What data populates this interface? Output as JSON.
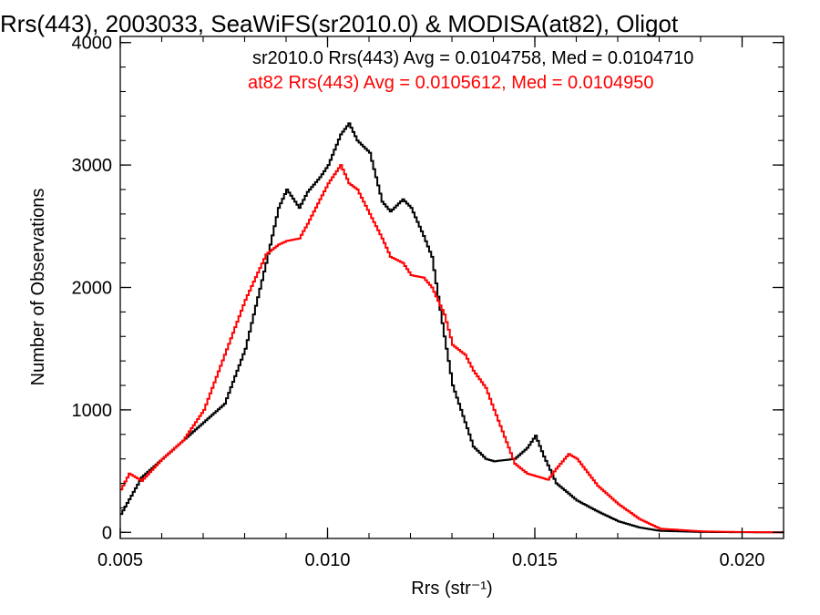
{
  "chart_data": {
    "type": "line",
    "style": "step-histogram",
    "title": "Rrs(443), 2003033, SeaWiFS(sr2010.0) & MODISA(at82), Oligot",
    "xlabel": "Rrs (str⁻¹)",
    "ylabel": "Number of Observations",
    "xlim": [
      0.005,
      0.021
    ],
    "ylim": [
      -50,
      4050
    ],
    "grid": false,
    "x_ticks": [
      0.005,
      0.01,
      0.015,
      0.02
    ],
    "x_tick_labels": [
      "0.005",
      "0.010",
      "0.015",
      "0.020"
    ],
    "y_ticks": [
      0,
      1000,
      2000,
      3000,
      4000
    ],
    "y_tick_labels": [
      "0",
      "1000",
      "2000",
      "3000",
      "4000"
    ],
    "annotations": [
      {
        "text": "sr2010.0 Rrs(443) Avg = 0.0104758, Med = 0.0104710",
        "color": "#000000"
      },
      {
        "text": "at82 Rrs(443) Avg = 0.0105612, Med = 0.0104950",
        "color": "#ff0000"
      }
    ],
    "series": [
      {
        "color": "#000000",
        "x": [
          0.005,
          0.0055,
          0.006,
          0.0065,
          0.007,
          0.0075,
          0.008,
          0.0085,
          0.0088,
          0.009,
          0.0093,
          0.0095,
          0.0098,
          0.01,
          0.0103,
          0.0105,
          0.0107,
          0.011,
          0.0113,
          0.0115,
          0.0118,
          0.012,
          0.0123,
          0.0125,
          0.0128,
          0.013,
          0.0133,
          0.0135,
          0.0138,
          0.014,
          0.0145,
          0.0148,
          0.015,
          0.0152,
          0.0155,
          0.016,
          0.0165,
          0.017,
          0.0175,
          0.018,
          0.019,
          0.02,
          0.021
        ],
        "y": [
          150,
          450,
          600,
          750,
          900,
          1050,
          1500,
          2200,
          2650,
          2800,
          2650,
          2780,
          2900,
          3000,
          3250,
          3340,
          3200,
          3100,
          2700,
          2620,
          2720,
          2650,
          2420,
          2250,
          1600,
          1200,
          900,
          700,
          600,
          580,
          600,
          690,
          790,
          620,
          400,
          260,
          170,
          90,
          40,
          12,
          3,
          1,
          0
        ]
      },
      {
        "color": "#ff0000",
        "x": [
          0.005,
          0.0052,
          0.0055,
          0.006,
          0.0065,
          0.007,
          0.0075,
          0.008,
          0.0085,
          0.0088,
          0.009,
          0.0093,
          0.0095,
          0.0098,
          0.01,
          0.0103,
          0.0105,
          0.0107,
          0.011,
          0.0113,
          0.0115,
          0.0118,
          0.012,
          0.0123,
          0.0125,
          0.0128,
          0.013,
          0.0133,
          0.0135,
          0.0138,
          0.014,
          0.0145,
          0.0148,
          0.015,
          0.0153,
          0.0155,
          0.0158,
          0.016,
          0.0165,
          0.017,
          0.0175,
          0.018,
          0.019,
          0.02,
          0.021
        ],
        "y": [
          350,
          480,
          420,
          600,
          750,
          1000,
          1450,
          1900,
          2270,
          2350,
          2380,
          2400,
          2520,
          2720,
          2850,
          3000,
          2850,
          2800,
          2600,
          2400,
          2250,
          2200,
          2100,
          2080,
          2000,
          1780,
          1530,
          1450,
          1320,
          1180,
          1000,
          560,
          480,
          460,
          430,
          520,
          640,
          600,
          380,
          230,
          110,
          30,
          8,
          2,
          0
        ]
      }
    ]
  }
}
